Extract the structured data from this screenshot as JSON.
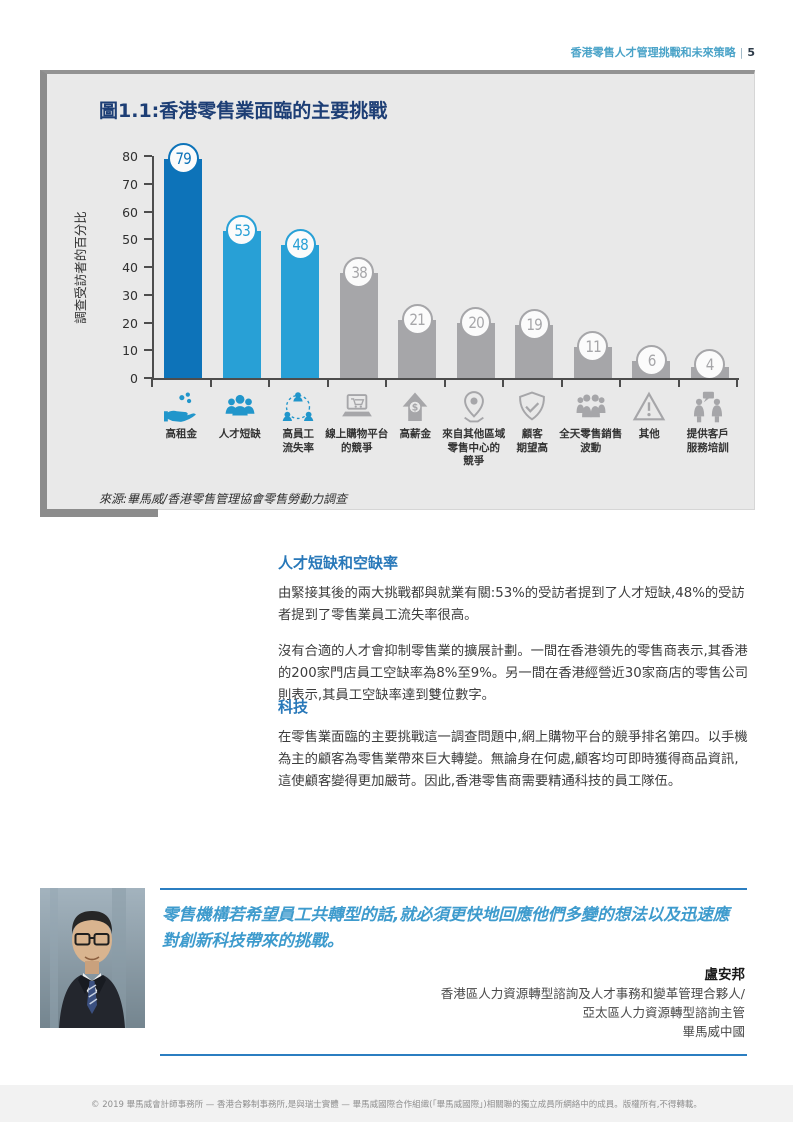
{
  "header": {
    "title": "香港零售人才管理挑戰和未來策略",
    "page_number": "5"
  },
  "chart_data": {
    "type": "bar",
    "title": "圖1.1:香港零售業面臨的主要挑戰",
    "ylabel": "調查受訪者的百分比",
    "ylim": [
      0,
      80
    ],
    "yticks": [
      0,
      10,
      20,
      30,
      40,
      50,
      60,
      70,
      80
    ],
    "grid": false,
    "legend": false,
    "categories": [
      "高租金",
      "人才短缺",
      "高員工流失率",
      "線上購物平台的競爭",
      "高薪金",
      "來自其他區域零售中心的競爭",
      "顧客期望高",
      "全天零售銷售波動",
      "其他",
      "提供客戶服務培訓"
    ],
    "label_lines": [
      "高租金",
      "人才短缺",
      "高員工\n流失率",
      "線上購物平台\n的競爭",
      "高薪金",
      "來自其他區域\n零售中心的\n競爭",
      "顧客\n期望高",
      "全天零售銷售\n波動",
      "其他",
      "提供客戶\n服務培訓"
    ],
    "values": [
      79,
      53,
      48,
      38,
      21,
      20,
      19,
      11,
      6,
      4
    ],
    "bar_colors": [
      "#0d73b9",
      "#28a0d6",
      "#28a0d6",
      "#a6a6a9",
      "#a6a6a9",
      "#a6a6a9",
      "#a6a6a9",
      "#a6a6a9",
      "#a6a6a9",
      "#a6a6a9"
    ],
    "icons": [
      "rent-coins-hand-icon",
      "talent-people-icon",
      "staff-turnover-icon",
      "online-shopping-icon",
      "salary-arrow-icon",
      "region-pin-icon",
      "shield-check-icon",
      "sales-crowd-icon",
      "warning-triangle-icon",
      "service-training-icon"
    ],
    "icon_colors": [
      "#2196cb",
      "#2196cb",
      "#2196cb",
      "#a6a6a9",
      "#a6a6a9",
      "#a6a6a9",
      "#a6a6a9",
      "#a6a6a9",
      "#a6a6a9",
      "#a6a6a9"
    ],
    "source": "來源:畢馬威/香港零售管理協會零售勞動力調查"
  },
  "sections": [
    {
      "heading": "人才短缺和空缺率",
      "paragraphs": [
        "由緊接其後的兩大挑戰都與就業有關:53%的受訪者提到了人才短缺,48%的受訪者提到了零售業員工流失率很高。",
        "沒有合適的人才會抑制零售業的擴展計劃。一間在香港領先的零售商表示,其香港的200家門店員工空缺率為8%至9%。另一間在香港經營近30家商店的零售公司則表示,其員工空缺率達到雙位數字。"
      ]
    },
    {
      "heading": "科技",
      "paragraphs": [
        "在零售業面臨的主要挑戰這一調查問題中,網上購物平台的競爭排名第四。以手機為主的顧客為零售業帶來巨大轉變。無論身在何處,顧客均可即時獲得商品資訊,這使顧客變得更加嚴苛。因此,香港零售商需要精通科技的員工隊伍。"
      ]
    }
  ],
  "quote": {
    "text": "零售機構若希望員工共轉型的話,就必須更快地回應他們多變的想法以及迅速應對創新科技帶來的挑戰。",
    "author": "盧安邦",
    "author_titles": [
      "香港區人力資源轉型諮詢及人才事務和變革管理合夥人/",
      "亞太區人力資源轉型諮詢主管",
      "畢馬威中國"
    ]
  },
  "footer": {
    "copyright": "© 2019 畢馬威會計師事務所 — 香港合夥制事務所,是與瑞士實體 — 畢馬威國際合作組織(「畢馬威國際」)相關聯的獨立成員所網絡中的成員。版權所有,不得轉載。"
  },
  "colors": {
    "dark_blue_bar": "#0d73b9",
    "light_blue_bar": "#28a0d6",
    "gray_bar": "#a6a6a9",
    "title_navy": "#1d3e75",
    "section_heading_blue": "#2878b9",
    "quote_blue": "#3e9bcd",
    "chart_background": "#e9e9e9"
  }
}
